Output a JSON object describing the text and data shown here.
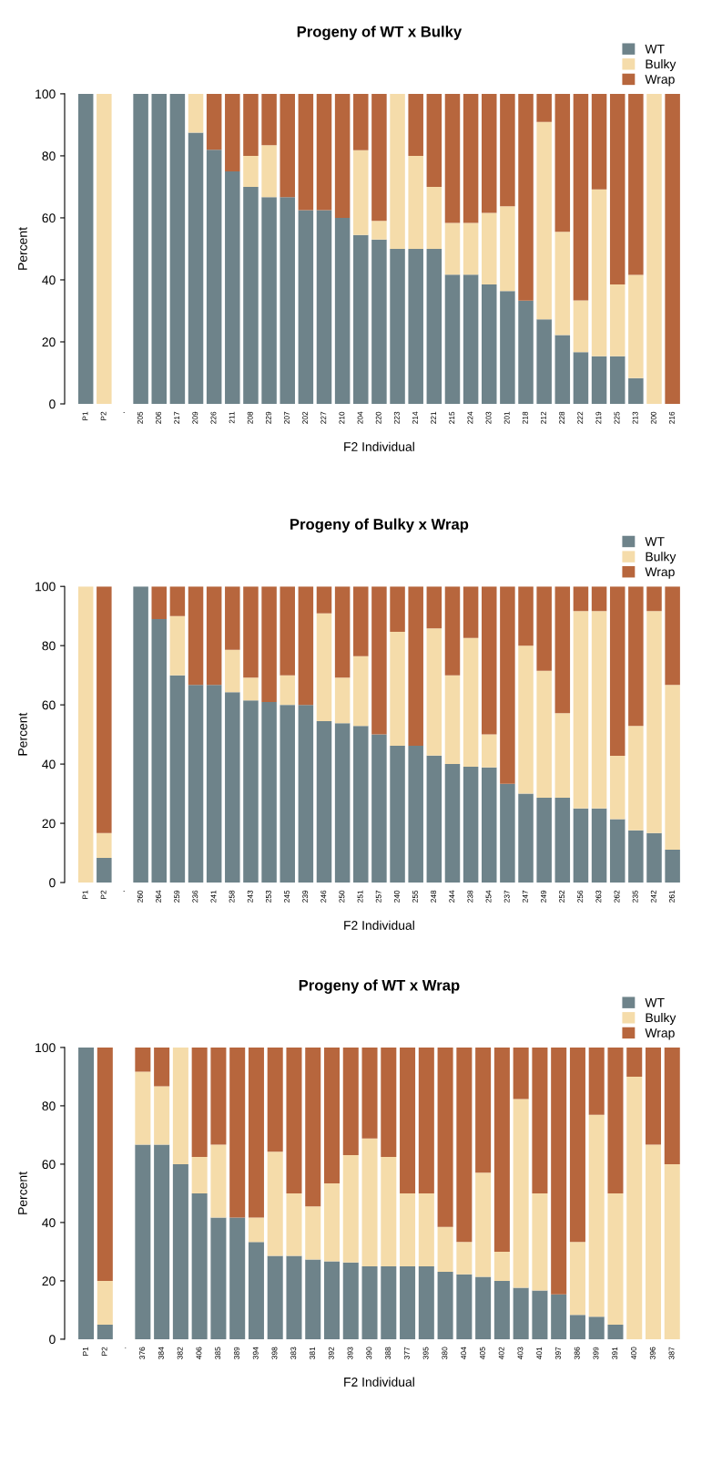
{
  "chart_data": [
    {
      "type": "bar",
      "stacked": true,
      "title": "Progeny of WT x Bulky",
      "xlabel": "F2 Individual",
      "ylabel": "Percent",
      "ylim": [
        0,
        100
      ],
      "yticks": [
        0,
        20,
        40,
        60,
        80,
        100
      ],
      "grid": false,
      "legend": "top right",
      "categories": [
        "P1",
        "P2",
        ".",
        "205",
        "206",
        "217",
        "209",
        "226",
        "211",
        "208",
        "229",
        "207",
        "202",
        "227",
        "210",
        "204",
        "220",
        "223",
        "214",
        "221",
        "215",
        "224",
        "203",
        "201",
        "218",
        "212",
        "228",
        "222",
        "219",
        "225",
        "213",
        "200",
        "216"
      ],
      "series": [
        {
          "name": "WT",
          "color": "#6e838a",
          "values": [
            100,
            0,
            null,
            100,
            100,
            100,
            87.5,
            82,
            75,
            70,
            66.7,
            66.7,
            62.5,
            62.5,
            60,
            54.5,
            53,
            50,
            50,
            50,
            41.7,
            41.7,
            38.5,
            36.4,
            33.3,
            27.3,
            22.2,
            16.7,
            15.4,
            15.4,
            8.3,
            0,
            0
          ]
        },
        {
          "name": "Bulky",
          "color": "#f5dcaa",
          "values": [
            0,
            100,
            null,
            0,
            0,
            0,
            12.5,
            0,
            0,
            10,
            16.7,
            0,
            0,
            0,
            0,
            27.3,
            6,
            50,
            30,
            20,
            16.7,
            16.7,
            23.1,
            27.3,
            0,
            63.6,
            33.3,
            16.7,
            53.8,
            23.1,
            33.3,
            100,
            0
          ]
        },
        {
          "name": "Wrap",
          "color": "#b7663d",
          "values": [
            0,
            0,
            null,
            0,
            0,
            0,
            0,
            18,
            25,
            20,
            16.6,
            33.3,
            37.5,
            37.5,
            40,
            18.2,
            41,
            0,
            20,
            30,
            41.6,
            41.6,
            38.4,
            36.3,
            66.7,
            9.1,
            44.5,
            66.6,
            30.8,
            61.5,
            58.4,
            0,
            100
          ]
        }
      ]
    },
    {
      "type": "bar",
      "stacked": true,
      "title": "Progeny of Bulky x Wrap",
      "xlabel": "F2 Individual",
      "ylabel": "Percent",
      "ylim": [
        0,
        100
      ],
      "yticks": [
        0,
        20,
        40,
        60,
        80,
        100
      ],
      "grid": false,
      "legend": "top right",
      "categories": [
        "P1",
        "P2",
        ".",
        "260",
        "264",
        "259",
        "236",
        "241",
        "258",
        "243",
        "253",
        "245",
        "239",
        "246",
        "250",
        "251",
        "257",
        "240",
        "255",
        "248",
        "244",
        "238",
        "254",
        "237",
        "247",
        "249",
        "252",
        "256",
        "263",
        "262",
        "235",
        "242",
        "261"
      ],
      "series": [
        {
          "name": "WT",
          "color": "#6e838a",
          "values": [
            0,
            8.3,
            null,
            100,
            89,
            70,
            66.7,
            66.7,
            64.3,
            61.5,
            61,
            60,
            60,
            54.5,
            53.8,
            52.9,
            50,
            46.2,
            46.2,
            42.9,
            40,
            39.1,
            38.9,
            33.3,
            30,
            28.6,
            28.6,
            25,
            25,
            21.4,
            17.6,
            16.7,
            11.1
          ]
        },
        {
          "name": "Bulky",
          "color": "#f5dcaa",
          "values": [
            100,
            8.4,
            null,
            0,
            0,
            20,
            0,
            0,
            14.3,
            7.7,
            0,
            10,
            0,
            36.4,
            15.4,
            23.5,
            0,
            38.5,
            0,
            42.9,
            30,
            43.5,
            11.1,
            0,
            50,
            42.9,
            28.6,
            66.7,
            66.7,
            21.4,
            35.3,
            75,
            55.6
          ]
        },
        {
          "name": "Wrap",
          "color": "#b7663d",
          "values": [
            0,
            83.3,
            null,
            0,
            11,
            10,
            33.3,
            33.3,
            21.4,
            30.8,
            39,
            30,
            40,
            9.1,
            30.8,
            23.6,
            50,
            15.3,
            53.8,
            14.2,
            30,
            17.4,
            50,
            66.7,
            20,
            28.5,
            42.8,
            8.3,
            8.3,
            57.2,
            47.1,
            8.3,
            33.3
          ]
        }
      ]
    },
    {
      "type": "bar",
      "stacked": true,
      "title": "Progeny of WT x Wrap",
      "xlabel": "F2 Individual",
      "ylabel": "Percent",
      "ylim": [
        0,
        100
      ],
      "yticks": [
        0,
        20,
        40,
        60,
        80,
        100
      ],
      "grid": false,
      "legend": "top right",
      "categories": [
        "P1",
        "P2",
        ".",
        "376",
        "384",
        "382",
        "406",
        "385",
        "389",
        "394",
        "398",
        "383",
        "381",
        "392",
        "393",
        "390",
        "388",
        "377",
        "395",
        "380",
        "404",
        "405",
        "402",
        "403",
        "401",
        "397",
        "386",
        "399",
        "391",
        "400",
        "396",
        "387"
      ],
      "series": [
        {
          "name": "WT",
          "color": "#6e838a",
          "values": [
            100,
            5,
            null,
            66.7,
            66.7,
            60,
            50,
            41.7,
            41.7,
            33.3,
            28.6,
            28.6,
            27.3,
            26.7,
            26.3,
            25,
            25,
            25,
            25,
            23.1,
            22.2,
            21.4,
            20,
            17.6,
            16.7,
            15.4,
            8.3,
            7.7,
            5,
            0,
            0,
            0
          ]
        },
        {
          "name": "Bulky",
          "color": "#f5dcaa",
          "values": [
            0,
            15,
            null,
            25,
            20,
            40,
            12.5,
            25,
            0,
            8.4,
            35.7,
            21.4,
            18.2,
            26.7,
            36.8,
            43.8,
            37.5,
            25,
            25,
            15.4,
            11.1,
            35.7,
            10,
            64.7,
            33.3,
            0,
            25,
            69.2,
            45,
            90,
            66.7,
            60
          ]
        },
        {
          "name": "Wrap",
          "color": "#b7663d",
          "values": [
            0,
            80,
            null,
            8.3,
            13.3,
            0,
            37.5,
            33.3,
            58.3,
            58.3,
            35.7,
            50,
            54.5,
            46.6,
            36.9,
            31.2,
            37.5,
            50,
            50,
            61.5,
            66.7,
            42.9,
            70,
            17.7,
            50,
            84.6,
            66.7,
            23.1,
            50,
            10,
            33.3,
            40
          ]
        }
      ]
    }
  ]
}
